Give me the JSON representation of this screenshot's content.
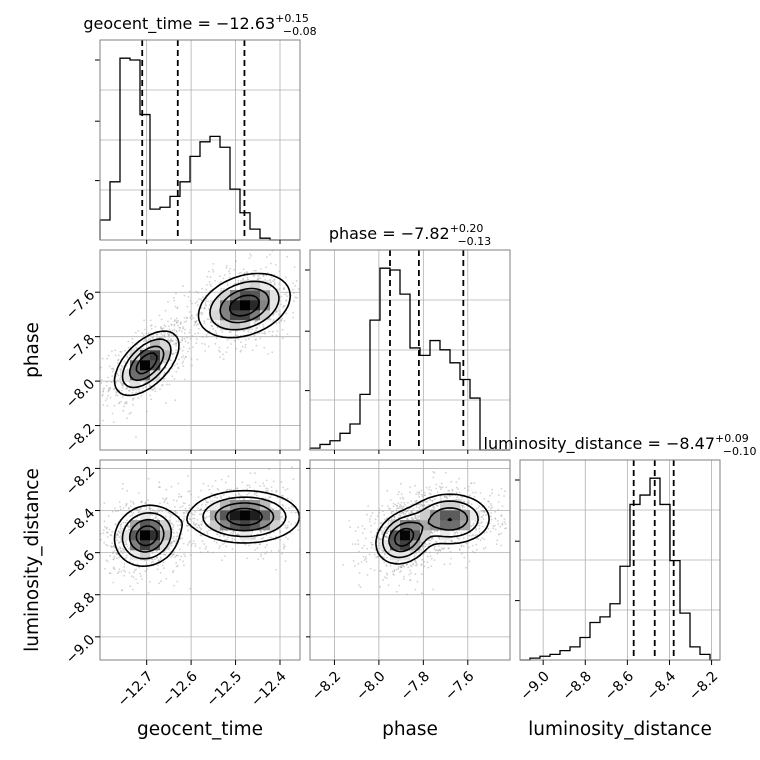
{
  "chart_data": {
    "type": "corner",
    "parameters": [
      {
        "name": "geocent_time",
        "title": {
          "main": "geocent_time = −12.63",
          "sup": "+0.15",
          "sub": "−0.08"
        },
        "axis_label": "geocent_time",
        "range": [
          -12.805,
          -12.355
        ],
        "ticks": [
          -12.7,
          -12.6,
          -12.5,
          -12.4
        ],
        "tick_labels": [
          "−12.7",
          "−12.6",
          "−12.5",
          "−12.4"
        ],
        "quantiles": [
          -12.71,
          -12.63,
          -12.48
        ],
        "hist": {
          "edges": [
            -12.805,
            -12.7825,
            -12.76,
            -12.7375,
            -12.715,
            -12.6925,
            -12.67,
            -12.6475,
            -12.625,
            -12.6025,
            -12.58,
            -12.5575,
            -12.535,
            -12.5125,
            -12.49,
            -12.4675,
            -12.445,
            -12.4225,
            -12.4,
            -12.3775,
            -12.355
          ],
          "counts": [
            0.11,
            0.32,
            1.0,
            0.99,
            0.69,
            0.17,
            0.18,
            0.24,
            0.32,
            0.46,
            0.54,
            0.57,
            0.51,
            0.28,
            0.15,
            0.06,
            0.01,
            0.0,
            0.0,
            0.0
          ]
        }
      },
      {
        "name": "phase",
        "title": {
          "main": "phase = −7.82",
          "sup": "+0.20",
          "sub": "−0.13"
        },
        "axis_label": "phase",
        "range": [
          -8.31,
          -7.41
        ],
        "ticks": [
          -8.2,
          -8.0,
          -7.8,
          -7.6
        ],
        "tick_labels": [
          "−8.2",
          "−8.0",
          "−7.8",
          "−7.6"
        ],
        "quantiles": [
          -7.95,
          -7.82,
          -7.62
        ],
        "hist": {
          "edges": [
            -8.31,
            -8.265,
            -8.22,
            -8.175,
            -8.13,
            -8.085,
            -8.04,
            -7.995,
            -7.95,
            -7.905,
            -7.86,
            -7.815,
            -7.77,
            -7.725,
            -7.68,
            -7.635,
            -7.59,
            -7.545,
            -7.5,
            -7.455,
            -7.41
          ],
          "counts": [
            0.01,
            0.03,
            0.05,
            0.09,
            0.14,
            0.3,
            0.7,
            0.98,
            0.97,
            0.84,
            0.55,
            0.51,
            0.59,
            0.54,
            0.47,
            0.38,
            0.28,
            0.0,
            0.0,
            0.0
          ]
        }
      },
      {
        "name": "luminosity_distance",
        "title": {
          "main": "luminosity_distance = −8.47",
          "sup": "+0.09",
          "sub": "−0.10"
        },
        "axis_label": "luminosity_distance",
        "range": [
          -9.11,
          -8.16
        ],
        "ticks": [
          -9.0,
          -8.8,
          -8.6,
          -8.4,
          -8.2
        ],
        "tick_labels": [
          "−9.0",
          "−8.8",
          "−8.6",
          "−8.4",
          "−8.2"
        ],
        "quantiles": [
          -8.57,
          -8.47,
          -8.38
        ],
        "hist": {
          "edges": [
            -9.11,
            -9.0625,
            -9.015,
            -8.9675,
            -8.92,
            -8.8725,
            -8.825,
            -8.7775,
            -8.73,
            -8.6825,
            -8.635,
            -8.5875,
            -8.54,
            -8.4925,
            -8.445,
            -8.3975,
            -8.35,
            -8.3025,
            -8.255,
            -8.2075,
            -8.16
          ],
          "counts": [
            0.0,
            0.01,
            0.02,
            0.03,
            0.05,
            0.07,
            0.12,
            0.2,
            0.23,
            0.3,
            0.5,
            0.83,
            0.88,
            0.97,
            0.83,
            0.53,
            0.25,
            0.07,
            0.03,
            0.0
          ]
        }
      }
    ],
    "pairs": [
      {
        "x_param": "geocent_time",
        "y_param": "phase",
        "modes": [
          {
            "cx": -12.7,
            "cy": -7.92,
            "sx": 0.035,
            "sy": 0.07,
            "rho": 0.55,
            "w": 0.5
          },
          {
            "cx": -12.48,
            "cy": -7.66,
            "sx": 0.05,
            "sy": 0.07,
            "rho": 0.3,
            "w": 0.5
          }
        ]
      },
      {
        "x_param": "geocent_time",
        "y_param": "luminosity_distance",
        "modes": [
          {
            "cx": -12.7,
            "cy": -8.52,
            "sx": 0.035,
            "sy": 0.07,
            "rho": 0.1,
            "w": 0.5
          },
          {
            "cx": -12.48,
            "cy": -8.43,
            "sx": 0.06,
            "sy": 0.06,
            "rho": 0.0,
            "w": 0.5
          }
        ]
      },
      {
        "x_param": "phase",
        "y_param": "luminosity_distance",
        "modes": [
          {
            "cx": -7.89,
            "cy": -8.53,
            "sx": 0.06,
            "sy": 0.06,
            "rho": 0.2,
            "w": 0.55
          },
          {
            "cx": -7.68,
            "cy": -8.44,
            "sx": 0.09,
            "sy": 0.06,
            "rho": 0.0,
            "w": 0.45
          }
        ]
      }
    ],
    "grid": true,
    "legend": "none"
  },
  "colors": {
    "line": "#000000",
    "grid": "#b0b0b0",
    "frame": "#808080",
    "scatter": "#9e9e9e",
    "contour_fill": "#ececec"
  }
}
